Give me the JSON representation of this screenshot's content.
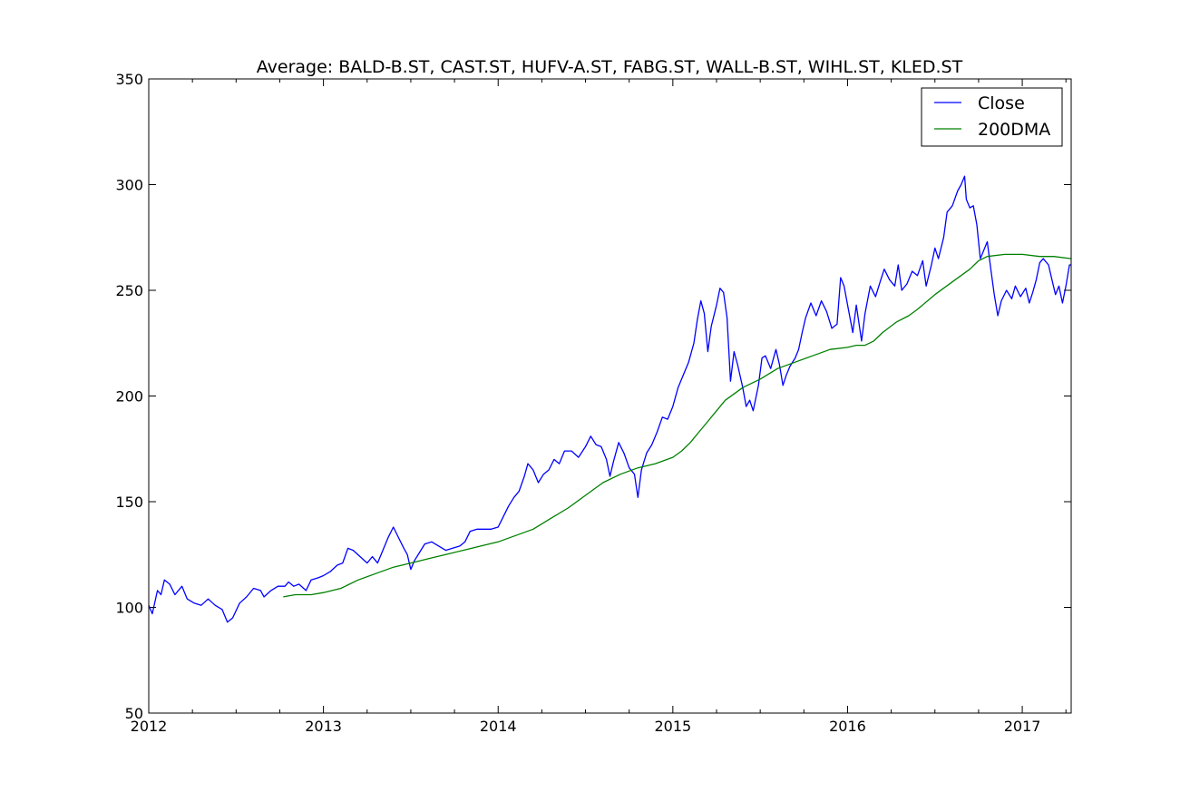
{
  "chart_data": {
    "type": "line",
    "title": "Average: BALD-B.ST, CAST.ST, HUFV-A.ST, FABG.ST, WALL-B.ST, WIHL.ST, KLED.ST",
    "xlabel": "",
    "ylabel": "",
    "xlim": [
      2012.0,
      2017.28
    ],
    "ylim": [
      50,
      350
    ],
    "x_ticks": [
      {
        "value": 2012,
        "label": "2012"
      },
      {
        "value": 2013,
        "label": "2013"
      },
      {
        "value": 2014,
        "label": "2014"
      },
      {
        "value": 2015,
        "label": "2015"
      },
      {
        "value": 2016,
        "label": "2016"
      },
      {
        "value": 2017,
        "label": "2017"
      }
    ],
    "y_ticks": [
      {
        "value": 50,
        "label": "50"
      },
      {
        "value": 100,
        "label": "100"
      },
      {
        "value": 150,
        "label": "150"
      },
      {
        "value": 200,
        "label": "200"
      },
      {
        "value": 250,
        "label": "250"
      },
      {
        "value": 300,
        "label": "300"
      },
      {
        "value": 350,
        "label": "350"
      }
    ],
    "grid": false,
    "legend_position": "top-right",
    "series": [
      {
        "name": "Close",
        "color": "#0000ff",
        "points": [
          [
            2012.0,
            101
          ],
          [
            2012.02,
            97
          ],
          [
            2012.05,
            108
          ],
          [
            2012.07,
            106
          ],
          [
            2012.09,
            113
          ],
          [
            2012.12,
            111
          ],
          [
            2012.15,
            106
          ],
          [
            2012.19,
            110
          ],
          [
            2012.22,
            104
          ],
          [
            2012.26,
            102
          ],
          [
            2012.3,
            101
          ],
          [
            2012.34,
            104
          ],
          [
            2012.38,
            101
          ],
          [
            2012.42,
            99
          ],
          [
            2012.45,
            93
          ],
          [
            2012.48,
            95
          ],
          [
            2012.52,
            102
          ],
          [
            2012.56,
            105
          ],
          [
            2012.6,
            109
          ],
          [
            2012.64,
            108
          ],
          [
            2012.66,
            105
          ],
          [
            2012.7,
            108
          ],
          [
            2012.74,
            110
          ],
          [
            2012.78,
            110
          ],
          [
            2012.8,
            112
          ],
          [
            2012.83,
            110
          ],
          [
            2012.86,
            111
          ],
          [
            2012.9,
            108
          ],
          [
            2012.93,
            113
          ],
          [
            2012.97,
            114
          ],
          [
            2013.0,
            115
          ],
          [
            2013.04,
            117
          ],
          [
            2013.08,
            120
          ],
          [
            2013.11,
            121
          ],
          [
            2013.14,
            128
          ],
          [
            2013.17,
            127
          ],
          [
            2013.21,
            124
          ],
          [
            2013.25,
            121
          ],
          [
            2013.28,
            124
          ],
          [
            2013.31,
            121
          ],
          [
            2013.34,
            127
          ],
          [
            2013.37,
            133
          ],
          [
            2013.4,
            138
          ],
          [
            2013.43,
            133
          ],
          [
            2013.46,
            128
          ],
          [
            2013.48,
            125
          ],
          [
            2013.5,
            118
          ],
          [
            2013.52,
            122
          ],
          [
            2013.55,
            126
          ],
          [
            2013.58,
            130
          ],
          [
            2013.62,
            131
          ],
          [
            2013.66,
            129
          ],
          [
            2013.7,
            127
          ],
          [
            2013.74,
            128
          ],
          [
            2013.78,
            129
          ],
          [
            2013.81,
            131
          ],
          [
            2013.84,
            136
          ],
          [
            2013.88,
            137
          ],
          [
            2013.92,
            137
          ],
          [
            2013.96,
            137
          ],
          [
            2014.0,
            138
          ],
          [
            2014.03,
            143
          ],
          [
            2014.06,
            148
          ],
          [
            2014.09,
            152
          ],
          [
            2014.12,
            155
          ],
          [
            2014.15,
            162
          ],
          [
            2014.17,
            168
          ],
          [
            2014.2,
            165
          ],
          [
            2014.23,
            159
          ],
          [
            2014.26,
            163
          ],
          [
            2014.29,
            165
          ],
          [
            2014.32,
            170
          ],
          [
            2014.35,
            168
          ],
          [
            2014.38,
            174
          ],
          [
            2014.42,
            174
          ],
          [
            2014.46,
            171
          ],
          [
            2014.5,
            176
          ],
          [
            2014.53,
            181
          ],
          [
            2014.56,
            177
          ],
          [
            2014.59,
            176
          ],
          [
            2014.62,
            170
          ],
          [
            2014.64,
            162
          ],
          [
            2014.66,
            169
          ],
          [
            2014.69,
            178
          ],
          [
            2014.72,
            173
          ],
          [
            2014.75,
            166
          ],
          [
            2014.78,
            163
          ],
          [
            2014.8,
            152
          ],
          [
            2014.82,
            165
          ],
          [
            2014.85,
            173
          ],
          [
            2014.88,
            177
          ],
          [
            2014.91,
            183
          ],
          [
            2014.94,
            190
          ],
          [
            2014.97,
            189
          ],
          [
            2015.0,
            195
          ],
          [
            2015.03,
            204
          ],
          [
            2015.06,
            210
          ],
          [
            2015.09,
            216
          ],
          [
            2015.12,
            225
          ],
          [
            2015.14,
            236
          ],
          [
            2015.16,
            245
          ],
          [
            2015.18,
            239
          ],
          [
            2015.2,
            221
          ],
          [
            2015.22,
            233
          ],
          [
            2015.25,
            243
          ],
          [
            2015.27,
            251
          ],
          [
            2015.29,
            249
          ],
          [
            2015.31,
            237
          ],
          [
            2015.33,
            207
          ],
          [
            2015.35,
            221
          ],
          [
            2015.37,
            215
          ],
          [
            2015.4,
            204
          ],
          [
            2015.42,
            195
          ],
          [
            2015.44,
            198
          ],
          [
            2015.46,
            193
          ],
          [
            2015.49,
            205
          ],
          [
            2015.51,
            218
          ],
          [
            2015.53,
            219
          ],
          [
            2015.56,
            213
          ],
          [
            2015.59,
            222
          ],
          [
            2015.61,
            215
          ],
          [
            2015.63,
            205
          ],
          [
            2015.65,
            210
          ],
          [
            2015.67,
            214
          ],
          [
            2015.7,
            218
          ],
          [
            2015.72,
            222
          ],
          [
            2015.74,
            230
          ],
          [
            2015.76,
            237
          ],
          [
            2015.79,
            244
          ],
          [
            2015.82,
            238
          ],
          [
            2015.85,
            245
          ],
          [
            2015.88,
            240
          ],
          [
            2015.91,
            232
          ],
          [
            2015.94,
            234
          ],
          [
            2015.96,
            256
          ],
          [
            2015.98,
            252
          ],
          [
            2016.0,
            243
          ],
          [
            2016.03,
            230
          ],
          [
            2016.05,
            243
          ],
          [
            2016.08,
            226
          ],
          [
            2016.1,
            239
          ],
          [
            2016.13,
            252
          ],
          [
            2016.16,
            247
          ],
          [
            2016.19,
            255
          ],
          [
            2016.21,
            260
          ],
          [
            2016.24,
            255
          ],
          [
            2016.27,
            252
          ],
          [
            2016.29,
            262
          ],
          [
            2016.31,
            250
          ],
          [
            2016.34,
            253
          ],
          [
            2016.37,
            259
          ],
          [
            2016.4,
            257
          ],
          [
            2016.43,
            264
          ],
          [
            2016.45,
            252
          ],
          [
            2016.48,
            262
          ],
          [
            2016.5,
            270
          ],
          [
            2016.52,
            265
          ],
          [
            2016.55,
            275
          ],
          [
            2016.57,
            287
          ],
          [
            2016.6,
            290
          ],
          [
            2016.63,
            297
          ],
          [
            2016.65,
            300
          ],
          [
            2016.67,
            304
          ],
          [
            2016.68,
            293
          ],
          [
            2016.7,
            289
          ],
          [
            2016.72,
            290
          ],
          [
            2016.74,
            281
          ],
          [
            2016.76,
            265
          ],
          [
            2016.78,
            269
          ],
          [
            2016.8,
            273
          ],
          [
            2016.82,
            260
          ],
          [
            2016.84,
            248
          ],
          [
            2016.86,
            238
          ],
          [
            2016.88,
            245
          ],
          [
            2016.91,
            250
          ],
          [
            2016.94,
            246
          ],
          [
            2016.96,
            252
          ],
          [
            2016.99,
            247
          ],
          [
            2017.02,
            251
          ],
          [
            2017.04,
            244
          ],
          [
            2017.06,
            249
          ],
          [
            2017.08,
            255
          ],
          [
            2017.1,
            263
          ],
          [
            2017.12,
            265
          ],
          [
            2017.15,
            262
          ],
          [
            2017.17,
            255
          ],
          [
            2017.19,
            248
          ],
          [
            2017.21,
            252
          ],
          [
            2017.23,
            244
          ],
          [
            2017.25,
            252
          ],
          [
            2017.27,
            262
          ],
          [
            2017.28,
            262
          ]
        ]
      },
      {
        "name": "200DMA",
        "color": "#008000",
        "points": [
          [
            2012.77,
            105
          ],
          [
            2012.84,
            106
          ],
          [
            2012.93,
            106
          ],
          [
            2013.0,
            107
          ],
          [
            2013.1,
            109
          ],
          [
            2013.2,
            113
          ],
          [
            2013.3,
            116
          ],
          [
            2013.4,
            119
          ],
          [
            2013.5,
            121
          ],
          [
            2013.6,
            123
          ],
          [
            2013.7,
            125
          ],
          [
            2013.8,
            127
          ],
          [
            2013.9,
            129
          ],
          [
            2014.0,
            131
          ],
          [
            2014.1,
            134
          ],
          [
            2014.2,
            137
          ],
          [
            2014.3,
            142
          ],
          [
            2014.4,
            147
          ],
          [
            2014.5,
            153
          ],
          [
            2014.6,
            159
          ],
          [
            2014.7,
            163
          ],
          [
            2014.8,
            166
          ],
          [
            2014.9,
            168
          ],
          [
            2015.0,
            171
          ],
          [
            2015.05,
            174
          ],
          [
            2015.1,
            178
          ],
          [
            2015.15,
            183
          ],
          [
            2015.2,
            188
          ],
          [
            2015.25,
            193
          ],
          [
            2015.3,
            198
          ],
          [
            2015.35,
            201
          ],
          [
            2015.4,
            204
          ],
          [
            2015.5,
            208
          ],
          [
            2015.6,
            213
          ],
          [
            2015.7,
            216
          ],
          [
            2015.8,
            219
          ],
          [
            2015.9,
            222
          ],
          [
            2016.0,
            223
          ],
          [
            2016.05,
            224
          ],
          [
            2016.1,
            224
          ],
          [
            2016.15,
            226
          ],
          [
            2016.2,
            230
          ],
          [
            2016.28,
            235
          ],
          [
            2016.35,
            238
          ],
          [
            2016.4,
            241
          ],
          [
            2016.5,
            248
          ],
          [
            2016.6,
            254
          ],
          [
            2016.7,
            260
          ],
          [
            2016.75,
            264
          ],
          [
            2016.8,
            266
          ],
          [
            2016.9,
            267
          ],
          [
            2017.0,
            267
          ],
          [
            2017.1,
            266
          ],
          [
            2017.18,
            266
          ],
          [
            2017.28,
            265
          ]
        ]
      }
    ]
  }
}
